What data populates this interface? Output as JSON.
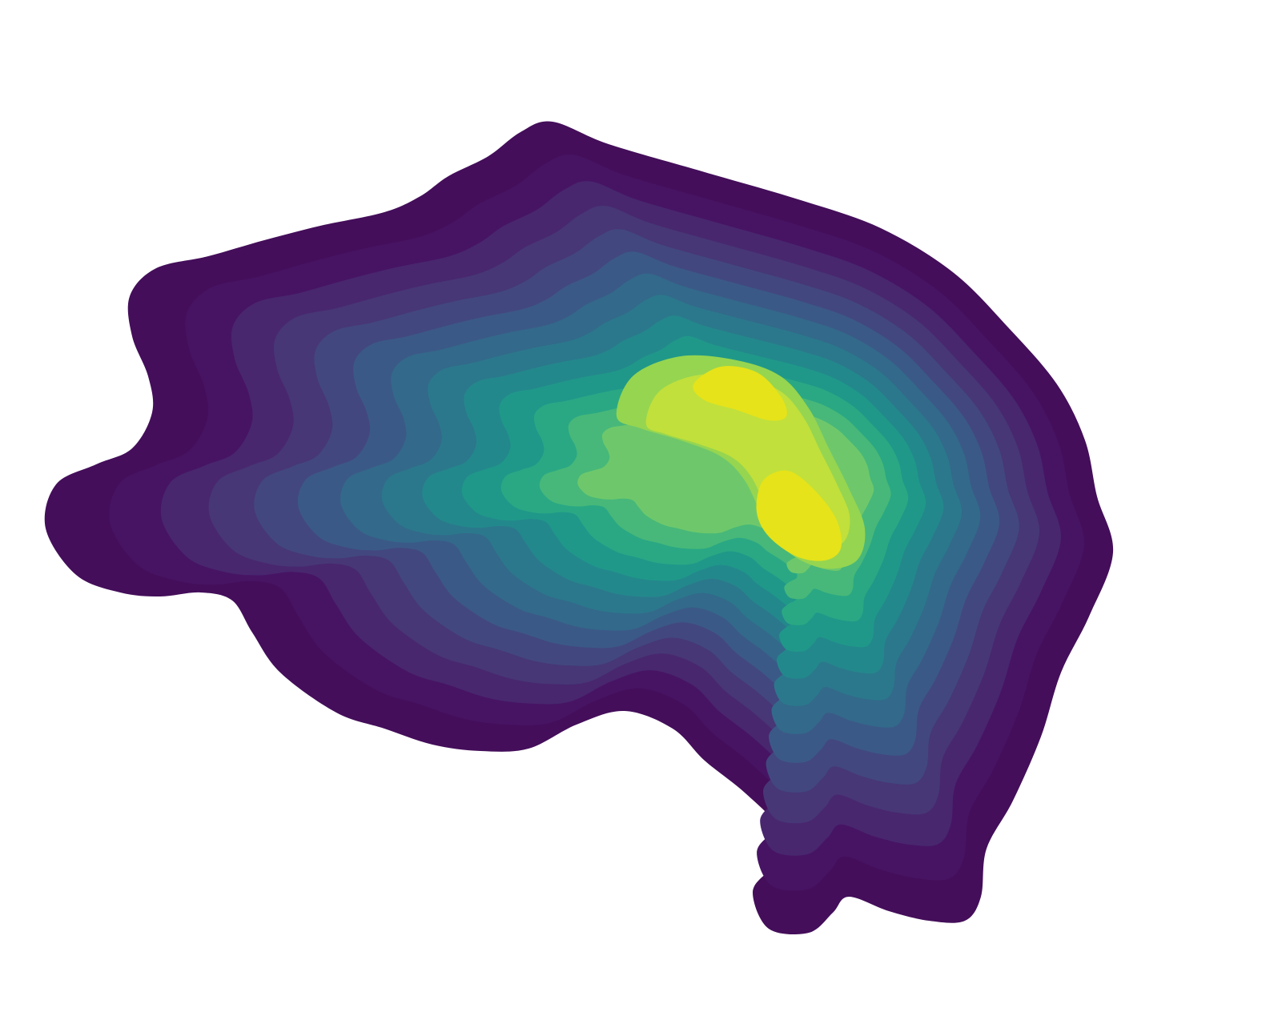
{
  "chart_data": {
    "type": "kde-contour",
    "title": "",
    "xlabel": "",
    "ylabel": "",
    "axes_visible": false,
    "grid": false,
    "legend": "none",
    "colormap": "viridis",
    "filled": true,
    "levels": 16,
    "level_colors": [
      "#440e5a",
      "#471464",
      "#48276e",
      "#473777",
      "#42487f",
      "#3b5987",
      "#33698a",
      "#2b788c",
      "#23888c",
      "#1f9889",
      "#2aa884",
      "#47b879",
      "#6ec86b",
      "#96d550",
      "#c1e03b",
      "#e6e31a"
    ],
    "density_peaks": [
      {
        "name": "upper-peak",
        "relative_density": 1.0
      },
      {
        "name": "lower-peak",
        "relative_density": 1.0
      }
    ]
  }
}
